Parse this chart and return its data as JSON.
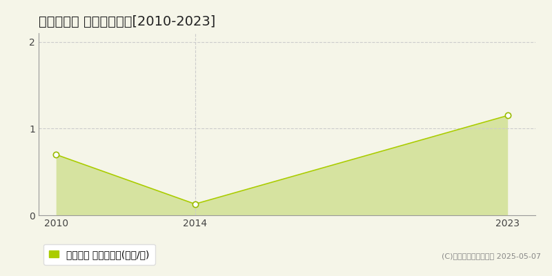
{
  "title": "新見市足見 土地価格推移[2010-2023]",
  "years": [
    2010,
    2014,
    2023
  ],
  "values": [
    0.7,
    0.13,
    1.15
  ],
  "line_color": "#aacc00",
  "fill_color": "#ccdd88",
  "fill_alpha": 0.75,
  "marker_color": "white",
  "marker_edge_color": "#99bb00",
  "marker_size": 6,
  "xlim": [
    2009.5,
    2023.8
  ],
  "ylim": [
    0,
    2.1
  ],
  "yticks": [
    0,
    1,
    2
  ],
  "xticks": [
    2010,
    2014,
    2023
  ],
  "grid_color": "#cccccc",
  "vline_x": 2014,
  "vline_color": "#cccccc",
  "vline_style": "--",
  "background_color": "#f5f5e8",
  "plot_bg_color": "#f5f5e8",
  "legend_label": "土地価格 平均坪単価(万円/坪)",
  "legend_color": "#aacc00",
  "copyright_text": "(C)土地価格ドットコム 2025-05-07",
  "title_fontsize": 14,
  "tick_fontsize": 10,
  "legend_fontsize": 10,
  "copyright_fontsize": 8
}
